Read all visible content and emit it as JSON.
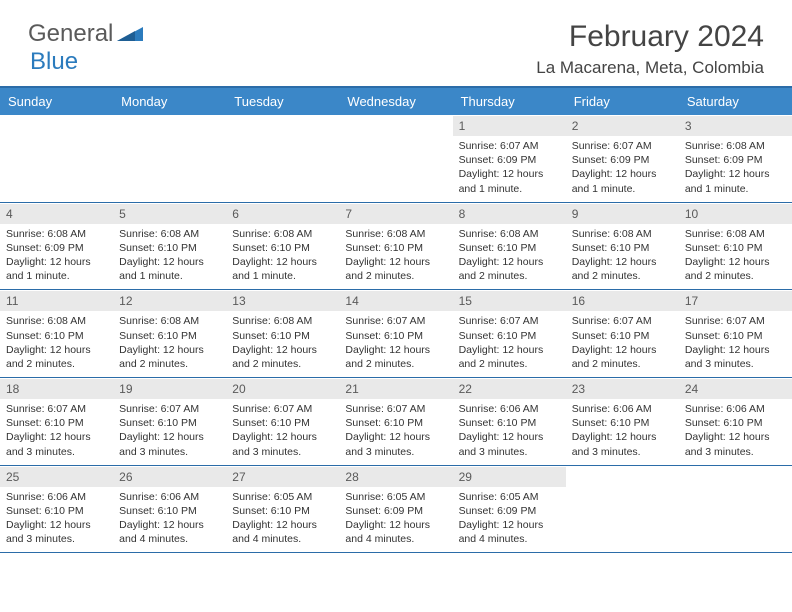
{
  "brand": {
    "part1": "General",
    "part2": "Blue"
  },
  "title": "February 2024",
  "location": "La Macarena, Meta, Colombia",
  "colors": {
    "header_bg": "#3b87c8",
    "header_border": "#2b6ca8",
    "daynum_bg": "#e9e9e9",
    "text": "#333333",
    "brand_gray": "#5a5a5a",
    "brand_blue": "#2b7bbd",
    "background": "#ffffff"
  },
  "typography": {
    "title_fontsize": 30,
    "location_fontsize": 17,
    "header_fontsize": 13,
    "daynum_fontsize": 12,
    "body_fontsize": 10.5
  },
  "day_headers": [
    "Sunday",
    "Monday",
    "Tuesday",
    "Wednesday",
    "Thursday",
    "Friday",
    "Saturday"
  ],
  "weeks": [
    [
      {
        "n": "",
        "sunrise": "",
        "sunset": "",
        "daylight": ""
      },
      {
        "n": "",
        "sunrise": "",
        "sunset": "",
        "daylight": ""
      },
      {
        "n": "",
        "sunrise": "",
        "sunset": "",
        "daylight": ""
      },
      {
        "n": "",
        "sunrise": "",
        "sunset": "",
        "daylight": ""
      },
      {
        "n": "1",
        "sunrise": "Sunrise: 6:07 AM",
        "sunset": "Sunset: 6:09 PM",
        "daylight": "Daylight: 12 hours and 1 minute."
      },
      {
        "n": "2",
        "sunrise": "Sunrise: 6:07 AM",
        "sunset": "Sunset: 6:09 PM",
        "daylight": "Daylight: 12 hours and 1 minute."
      },
      {
        "n": "3",
        "sunrise": "Sunrise: 6:08 AM",
        "sunset": "Sunset: 6:09 PM",
        "daylight": "Daylight: 12 hours and 1 minute."
      }
    ],
    [
      {
        "n": "4",
        "sunrise": "Sunrise: 6:08 AM",
        "sunset": "Sunset: 6:09 PM",
        "daylight": "Daylight: 12 hours and 1 minute."
      },
      {
        "n": "5",
        "sunrise": "Sunrise: 6:08 AM",
        "sunset": "Sunset: 6:10 PM",
        "daylight": "Daylight: 12 hours and 1 minute."
      },
      {
        "n": "6",
        "sunrise": "Sunrise: 6:08 AM",
        "sunset": "Sunset: 6:10 PM",
        "daylight": "Daylight: 12 hours and 1 minute."
      },
      {
        "n": "7",
        "sunrise": "Sunrise: 6:08 AM",
        "sunset": "Sunset: 6:10 PM",
        "daylight": "Daylight: 12 hours and 2 minutes."
      },
      {
        "n": "8",
        "sunrise": "Sunrise: 6:08 AM",
        "sunset": "Sunset: 6:10 PM",
        "daylight": "Daylight: 12 hours and 2 minutes."
      },
      {
        "n": "9",
        "sunrise": "Sunrise: 6:08 AM",
        "sunset": "Sunset: 6:10 PM",
        "daylight": "Daylight: 12 hours and 2 minutes."
      },
      {
        "n": "10",
        "sunrise": "Sunrise: 6:08 AM",
        "sunset": "Sunset: 6:10 PM",
        "daylight": "Daylight: 12 hours and 2 minutes."
      }
    ],
    [
      {
        "n": "11",
        "sunrise": "Sunrise: 6:08 AM",
        "sunset": "Sunset: 6:10 PM",
        "daylight": "Daylight: 12 hours and 2 minutes."
      },
      {
        "n": "12",
        "sunrise": "Sunrise: 6:08 AM",
        "sunset": "Sunset: 6:10 PM",
        "daylight": "Daylight: 12 hours and 2 minutes."
      },
      {
        "n": "13",
        "sunrise": "Sunrise: 6:08 AM",
        "sunset": "Sunset: 6:10 PM",
        "daylight": "Daylight: 12 hours and 2 minutes."
      },
      {
        "n": "14",
        "sunrise": "Sunrise: 6:07 AM",
        "sunset": "Sunset: 6:10 PM",
        "daylight": "Daylight: 12 hours and 2 minutes."
      },
      {
        "n": "15",
        "sunrise": "Sunrise: 6:07 AM",
        "sunset": "Sunset: 6:10 PM",
        "daylight": "Daylight: 12 hours and 2 minutes."
      },
      {
        "n": "16",
        "sunrise": "Sunrise: 6:07 AM",
        "sunset": "Sunset: 6:10 PM",
        "daylight": "Daylight: 12 hours and 2 minutes."
      },
      {
        "n": "17",
        "sunrise": "Sunrise: 6:07 AM",
        "sunset": "Sunset: 6:10 PM",
        "daylight": "Daylight: 12 hours and 3 minutes."
      }
    ],
    [
      {
        "n": "18",
        "sunrise": "Sunrise: 6:07 AM",
        "sunset": "Sunset: 6:10 PM",
        "daylight": "Daylight: 12 hours and 3 minutes."
      },
      {
        "n": "19",
        "sunrise": "Sunrise: 6:07 AM",
        "sunset": "Sunset: 6:10 PM",
        "daylight": "Daylight: 12 hours and 3 minutes."
      },
      {
        "n": "20",
        "sunrise": "Sunrise: 6:07 AM",
        "sunset": "Sunset: 6:10 PM",
        "daylight": "Daylight: 12 hours and 3 minutes."
      },
      {
        "n": "21",
        "sunrise": "Sunrise: 6:07 AM",
        "sunset": "Sunset: 6:10 PM",
        "daylight": "Daylight: 12 hours and 3 minutes."
      },
      {
        "n": "22",
        "sunrise": "Sunrise: 6:06 AM",
        "sunset": "Sunset: 6:10 PM",
        "daylight": "Daylight: 12 hours and 3 minutes."
      },
      {
        "n": "23",
        "sunrise": "Sunrise: 6:06 AM",
        "sunset": "Sunset: 6:10 PM",
        "daylight": "Daylight: 12 hours and 3 minutes."
      },
      {
        "n": "24",
        "sunrise": "Sunrise: 6:06 AM",
        "sunset": "Sunset: 6:10 PM",
        "daylight": "Daylight: 12 hours and 3 minutes."
      }
    ],
    [
      {
        "n": "25",
        "sunrise": "Sunrise: 6:06 AM",
        "sunset": "Sunset: 6:10 PM",
        "daylight": "Daylight: 12 hours and 3 minutes."
      },
      {
        "n": "26",
        "sunrise": "Sunrise: 6:06 AM",
        "sunset": "Sunset: 6:10 PM",
        "daylight": "Daylight: 12 hours and 4 minutes."
      },
      {
        "n": "27",
        "sunrise": "Sunrise: 6:05 AM",
        "sunset": "Sunset: 6:10 PM",
        "daylight": "Daylight: 12 hours and 4 minutes."
      },
      {
        "n": "28",
        "sunrise": "Sunrise: 6:05 AM",
        "sunset": "Sunset: 6:09 PM",
        "daylight": "Daylight: 12 hours and 4 minutes."
      },
      {
        "n": "29",
        "sunrise": "Sunrise: 6:05 AM",
        "sunset": "Sunset: 6:09 PM",
        "daylight": "Daylight: 12 hours and 4 minutes."
      },
      {
        "n": "",
        "sunrise": "",
        "sunset": "",
        "daylight": ""
      },
      {
        "n": "",
        "sunrise": "",
        "sunset": "",
        "daylight": ""
      }
    ]
  ]
}
